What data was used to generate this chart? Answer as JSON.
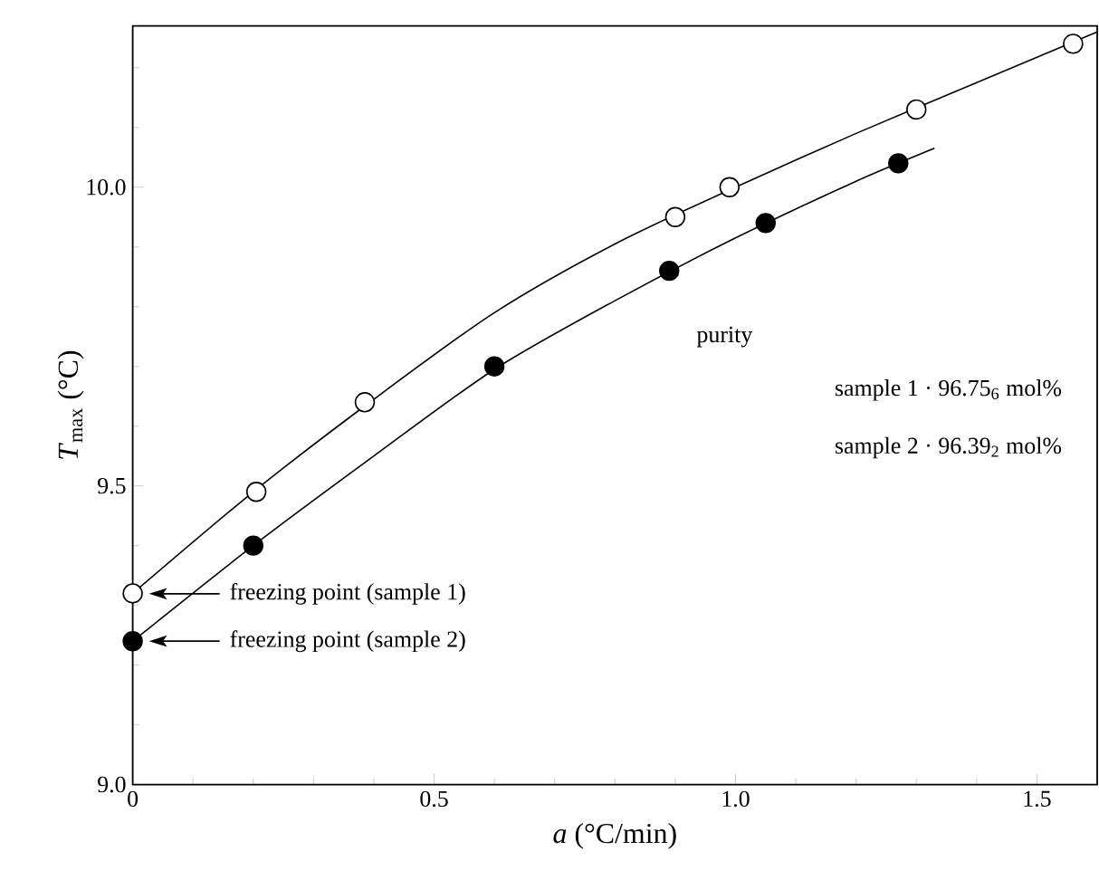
{
  "chart_data": {
    "type": "scatter",
    "xlabel": "*a* (°C/min)",
    "line_style": "solid",
    "ylabel": "*T*$_{max}$ (°C)",
    "xlim": [
      0,
      1.6
    ],
    "ylim": [
      9.0,
      10.27
    ],
    "xticks": [
      {
        "value": 0,
        "label": "0"
      },
      {
        "value": 0.1,
        "label": null
      },
      {
        "value": 0.2,
        "label": null
      },
      {
        "value": 0.3,
        "label": null
      },
      {
        "value": 0.4,
        "label": null
      },
      0.5,
      {
        "value": 0.6,
        "label": null
      },
      {
        "value": 0.7,
        "label": null
      },
      {
        "value": 0.8,
        "label": null
      },
      {
        "value": 0.9,
        "label": null
      },
      {
        "value": 1.0,
        "label": "1.0"
      },
      {
        "value": 1.1,
        "label": null
      },
      {
        "value": 1.2,
        "label": null
      },
      {
        "value": 1.3,
        "label": null
      },
      {
        "value": 1.4,
        "label": null
      },
      1.5
    ],
    "yticks": [
      {
        "value": 9.0,
        "label": "9.0"
      },
      {
        "value": 9.1,
        "label": null
      },
      {
        "value": 9.2,
        "label": null
      },
      {
        "value": 9.3,
        "label": null
      },
      {
        "value": 9.4,
        "label": null
      },
      9.5,
      {
        "value": 9.6,
        "label": null
      },
      {
        "value": 9.7,
        "label": null
      },
      {
        "value": 9.8,
        "label": null
      },
      {
        "value": 9.9,
        "label": null
      },
      {
        "value": 10.0,
        "label": "10.0"
      },
      {
        "value": 10.1,
        "label": null
      },
      {
        "value": 10.2,
        "label": null
      }
    ],
    "grid": false,
    "marker": "circle",
    "series": [
      {
        "type": "line",
        "marker": "none",
        "color": "#000000",
        "x": [
          0,
          0.2,
          0.4,
          0.6,
          0.8,
          1.0,
          1.2,
          1.4,
          1.6
        ],
        "values": [
          9.32,
          9.49,
          9.645,
          9.79,
          9.905,
          10.0,
          10.09,
          10.175,
          10.26
        ]
      },
      {
        "type": "line",
        "marker": "none",
        "color": "#000000",
        "x": [
          0,
          0.2,
          0.4,
          0.6,
          0.8,
          1.0,
          1.2,
          1.33
        ],
        "values": [
          9.24,
          9.4,
          9.55,
          9.695,
          9.81,
          9.915,
          10.01,
          10.065
        ]
      },
      {
        "color": "#ffffff",
        "x": [
          0,
          0.205,
          0.385,
          0.9,
          0.99,
          1.3,
          1.56
        ],
        "values": [
          9.32,
          9.49,
          9.64,
          9.95,
          10.0,
          10.13,
          10.24
        ]
      },
      {
        "color": "#000000",
        "x": [
          0,
          0.2,
          0.6,
          0.89,
          1.05,
          1.27
        ],
        "values": [
          9.24,
          9.4,
          9.7,
          9.86,
          9.94,
          10.04
        ]
      }
    ],
    "annotations": [
      "freezing point (sample 1)",
      "freezing point (sample 2)",
      "purity",
      "sample 1 · 96.75$_{6}$ mol%",
      "sample 2 · 96.39$_{2}$ mol%"
    ]
  }
}
